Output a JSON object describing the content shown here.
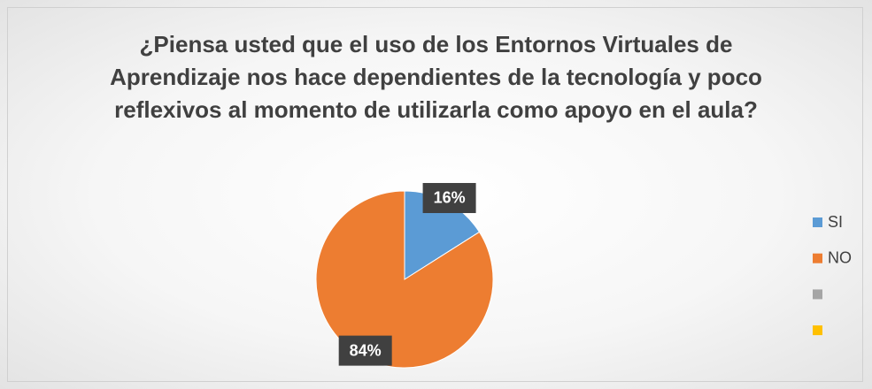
{
  "chart_data": {
    "type": "pie",
    "title": "¿Piensa usted que el uso de los Entornos Virtuales de Aprendizaje nos hace dependientes de la tecnología y poco reflexivos al momento de utilizarla como apoyo en el aula?",
    "categories": [
      "SI",
      "NO",
      null,
      null
    ],
    "values": [
      16,
      84,
      0,
      0
    ],
    "value_labels": [
      "16%",
      "84%",
      null,
      null
    ],
    "colors": [
      "#5b9bd5",
      "#ed7d31",
      "#a5a5a5",
      "#ffc000"
    ],
    "legend": "right"
  }
}
